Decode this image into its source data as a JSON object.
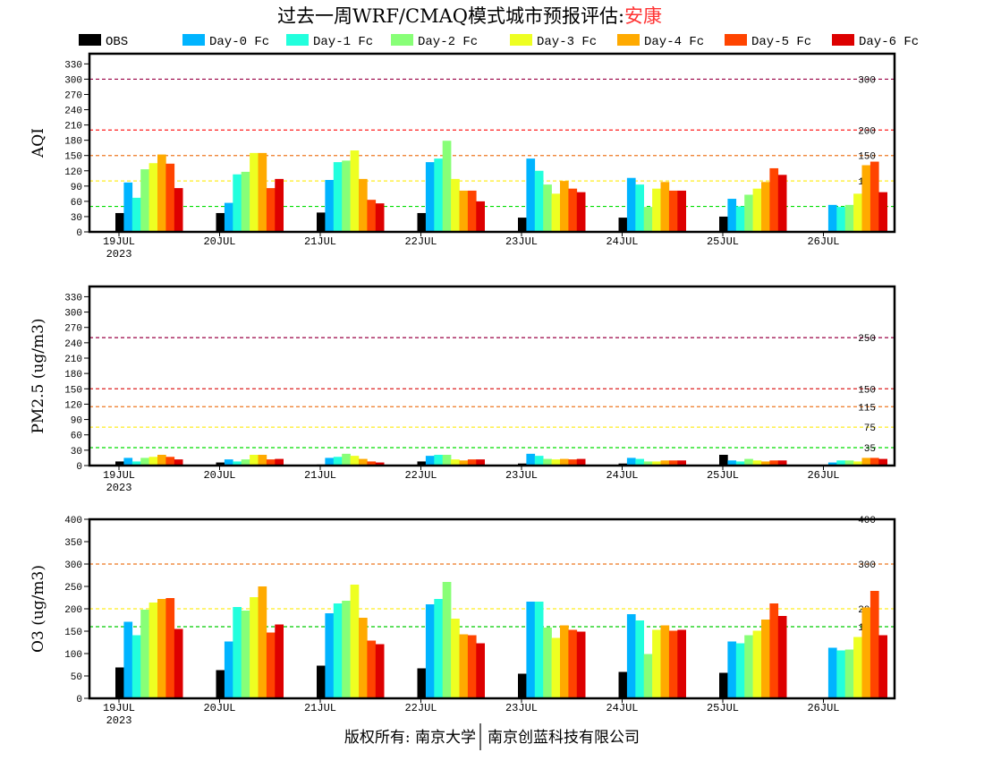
{
  "title": {
    "prefix": "过去一周WRF/CMAQ模式城市预报评估:",
    "city": "安康",
    "city_color": "#ff3333"
  },
  "footer": {
    "left": "版权所有: 南京大学",
    "right": "南京创蓝科技有限公司"
  },
  "legend": [
    {
      "label": "OBS",
      "color": "#000000"
    },
    {
      "label": "Day-0 Fc",
      "color": "#00b4ff"
    },
    {
      "label": "Day-1 Fc",
      "color": "#22ffdd"
    },
    {
      "label": "Day-2 Fc",
      "color": "#88ff77"
    },
    {
      "label": "Day-3 Fc",
      "color": "#eeff22"
    },
    {
      "label": "Day-4 Fc",
      "color": "#ffaa00"
    },
    {
      "label": "Day-5 Fc",
      "color": "#ff4400"
    },
    {
      "label": "Day-6 Fc",
      "color": "#dd0000"
    }
  ],
  "chart_data": [
    {
      "type": "bar",
      "ylabel": "AQI",
      "ylim": [
        0,
        350
      ],
      "yticks": [
        0,
        30,
        60,
        90,
        120,
        150,
        180,
        210,
        240,
        270,
        300,
        330
      ],
      "categories": [
        "19JUL",
        "20JUL",
        "21JUL",
        "22JUL",
        "23JUL",
        "24JUL",
        "25JUL",
        "26JUL"
      ],
      "year_label": "2023",
      "thresholds": [
        {
          "value": 50,
          "label": "50",
          "color": "#00dd00"
        },
        {
          "value": 100,
          "label": "100",
          "color": "#ffee22"
        },
        {
          "value": 150,
          "label": "150",
          "color": "#ee7722"
        },
        {
          "value": 200,
          "label": "200",
          "color": "#ff2020"
        },
        {
          "value": 300,
          "label": "300",
          "color": "#990044"
        }
      ],
      "series": [
        {
          "name": "OBS",
          "values": [
            37,
            37,
            38,
            37,
            28,
            28,
            30,
            null
          ]
        },
        {
          "name": "Day-0 Fc",
          "values": [
            97,
            57,
            102,
            137,
            144,
            106,
            65,
            53
          ]
        },
        {
          "name": "Day-1 Fc",
          "values": [
            67,
            113,
            137,
            144,
            120,
            93,
            50,
            49
          ]
        },
        {
          "name": "Day-2 Fc",
          "values": [
            123,
            118,
            140,
            179,
            93,
            49,
            73,
            53
          ]
        },
        {
          "name": "Day-3 Fc",
          "values": [
            135,
            155,
            160,
            104,
            75,
            85,
            85,
            75
          ]
        },
        {
          "name": "Day-4 Fc",
          "values": [
            152,
            155,
            104,
            81,
            100,
            98,
            98,
            131
          ]
        },
        {
          "name": "Day-5 Fc",
          "values": [
            134,
            86,
            63,
            81,
            85,
            81,
            125,
            138
          ]
        },
        {
          "name": "Day-6 Fc",
          "values": [
            86,
            104,
            56,
            60,
            78,
            81,
            112,
            78
          ]
        }
      ]
    },
    {
      "type": "bar",
      "ylabel": "PM2.5 (ug/m3)",
      "ylim": [
        0,
        350
      ],
      "yticks": [
        0,
        30,
        60,
        90,
        120,
        150,
        180,
        210,
        240,
        270,
        300,
        330
      ],
      "categories": [
        "19JUL",
        "20JUL",
        "21JUL",
        "22JUL",
        "23JUL",
        "24JUL",
        "25JUL",
        "26JUL"
      ],
      "year_label": "2023",
      "thresholds": [
        {
          "value": 35,
          "label": "35",
          "color": "#00dd00"
        },
        {
          "value": 75,
          "label": "75",
          "color": "#ffee22"
        },
        {
          "value": 115,
          "label": "115",
          "color": "#ee7722"
        },
        {
          "value": 150,
          "label": "150",
          "color": "#dd2020"
        },
        {
          "value": 250,
          "label": "250",
          "color": "#990044"
        }
      ],
      "series": [
        {
          "name": "OBS",
          "values": [
            8,
            6,
            2,
            8,
            4,
            4,
            21,
            null
          ]
        },
        {
          "name": "Day-0 Fc",
          "values": [
            15,
            12,
            15,
            19,
            23,
            15,
            10,
            6
          ]
        },
        {
          "name": "Day-1 Fc",
          "values": [
            8,
            8,
            17,
            21,
            19,
            13,
            8,
            10
          ]
        },
        {
          "name": "Day-2 Fc",
          "values": [
            15,
            12,
            23,
            21,
            13,
            8,
            13,
            10
          ]
        },
        {
          "name": "Day-3 Fc",
          "values": [
            17,
            21,
            19,
            12,
            12,
            8,
            10,
            8
          ]
        },
        {
          "name": "Day-4 Fc",
          "values": [
            21,
            21,
            13,
            10,
            13,
            10,
            8,
            15
          ]
        },
        {
          "name": "Day-5 Fc",
          "values": [
            17,
            12,
            8,
            12,
            12,
            10,
            10,
            15
          ]
        },
        {
          "name": "Day-6 Fc",
          "values": [
            12,
            13,
            6,
            12,
            13,
            10,
            10,
            13
          ]
        }
      ]
    },
    {
      "type": "bar",
      "ylabel": "O3 (ug/m3)",
      "ylim": [
        0,
        400
      ],
      "yticks": [
        0,
        50,
        100,
        150,
        200,
        250,
        300,
        350,
        400
      ],
      "categories": [
        "19JUL",
        "20JUL",
        "21JUL",
        "22JUL",
        "23JUL",
        "24JUL",
        "25JUL",
        "26JUL"
      ],
      "year_label": "2023",
      "thresholds": [
        {
          "value": 160,
          "label": "160",
          "color": "#00cc00"
        },
        {
          "value": 200,
          "label": "200",
          "color": "#ffee22"
        },
        {
          "value": 300,
          "label": "300",
          "color": "#ee7722"
        },
        {
          "value": 400,
          "label": "400",
          "color": "#ff2020"
        }
      ],
      "series": [
        {
          "name": "OBS",
          "values": [
            69,
            63,
            73,
            67,
            55,
            59,
            57,
            null
          ]
        },
        {
          "name": "Day-0 Fc",
          "values": [
            171,
            127,
            190,
            210,
            216,
            188,
            127,
            113
          ]
        },
        {
          "name": "Day-1 Fc",
          "values": [
            141,
            204,
            212,
            222,
            216,
            174,
            123,
            107
          ]
        },
        {
          "name": "Day-2 Fc",
          "values": [
            198,
            196,
            218,
            260,
            158,
            99,
            141,
            109
          ]
        },
        {
          "name": "Day-3 Fc",
          "values": [
            214,
            226,
            254,
            178,
            135,
            153,
            151,
            137
          ]
        },
        {
          "name": "Day-4 Fc",
          "values": [
            222,
            250,
            180,
            143,
            163,
            163,
            176,
            203
          ]
        },
        {
          "name": "Day-5 Fc",
          "values": [
            224,
            147,
            129,
            141,
            153,
            151,
            212,
            240
          ]
        },
        {
          "name": "Day-6 Fc",
          "values": [
            155,
            165,
            121,
            123,
            149,
            153,
            184,
            141
          ]
        }
      ]
    }
  ]
}
